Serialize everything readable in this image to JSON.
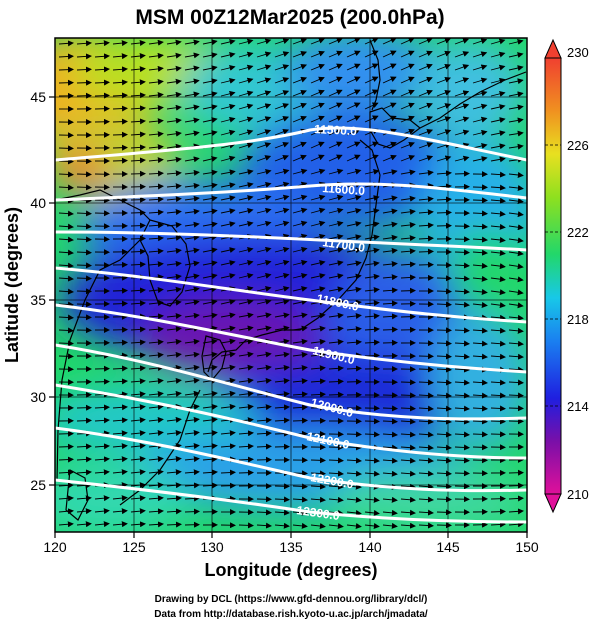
{
  "title": "MSM 00Z12Mar2025 (200.0hPa)",
  "axes": {
    "xlabel": "Longitude (degrees)",
    "ylabel": "Latitude  (degrees)",
    "xticks": [
      "120",
      "125",
      "130",
      "135",
      "140",
      "145",
      "150"
    ],
    "yticks": [
      "45",
      "40",
      "35",
      "30",
      "25"
    ]
  },
  "colorbar": {
    "labels": [
      "230",
      "226",
      "222",
      "218",
      "214",
      "210"
    ],
    "min": 210,
    "max": 230,
    "colors": [
      "#e0109a",
      "#7a0fa8",
      "#1f1fe0",
      "#1a7ff0",
      "#18c8e8",
      "#22d76a",
      "#8ee01f",
      "#e8e020",
      "#f09020",
      "#f04030"
    ]
  },
  "contours": {
    "labels": [
      "11500.0",
      "11600.0",
      "11700.0",
      "11800.0",
      "11900.0",
      "12000.0",
      "12100.0",
      "12200.0",
      "12300.0"
    ]
  },
  "credits": {
    "line1": "Drawing by DCL (https://www.gfd-dennou.org/library/dcl/)",
    "line2": "Data from http://database.rish.kyoto-u.ac.jp/arch/jmadata/"
  },
  "chart_data": {
    "type": "heatmap",
    "title": "MSM 00Z12Mar2025 (200.0hPa)",
    "xlabel": "Longitude (degrees)",
    "ylabel": "Latitude  (degrees)",
    "xlim": [
      120,
      150
    ],
    "ylim": [
      22.5,
      47.5
    ],
    "x_ticks": [
      120,
      125,
      130,
      135,
      140,
      145,
      150
    ],
    "y_ticks": [
      25,
      30,
      35,
      40,
      45
    ],
    "colorbar_range": [
      210,
      230
    ],
    "colorbar_ticks": [
      210,
      214,
      218,
      222,
      226,
      230
    ],
    "contour_levels": [
      11500,
      11600,
      11700,
      11800,
      11900,
      12000,
      12100,
      12200,
      12300
    ],
    "grid": true
  }
}
